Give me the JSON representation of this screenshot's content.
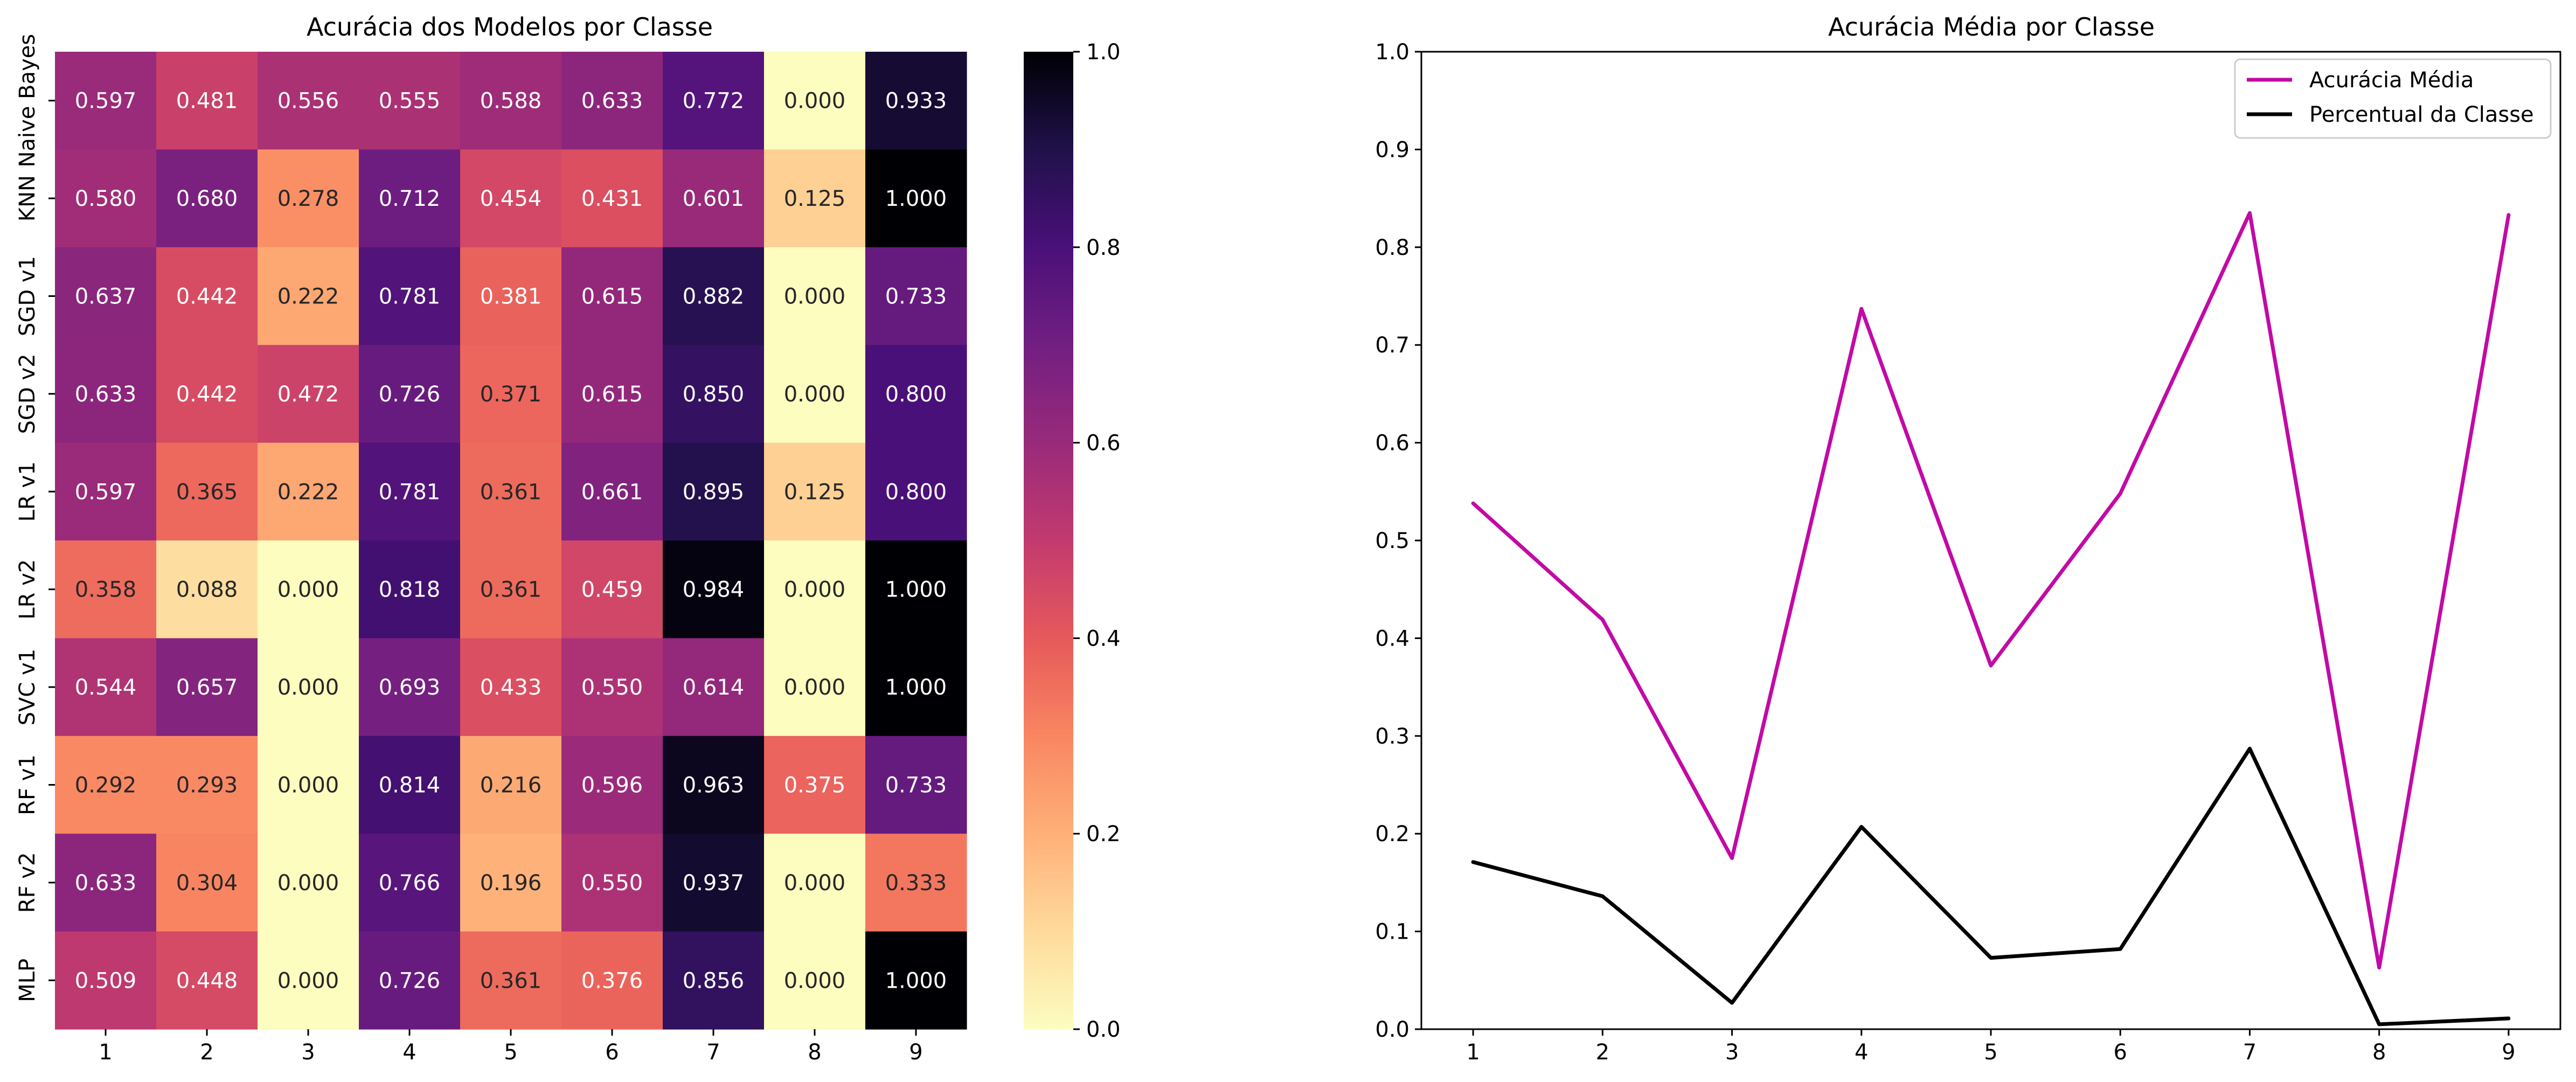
{
  "chart_data": [
    {
      "type": "heatmap",
      "title": "Acurácia dos Modelos por Classe",
      "rows": [
        "Naive Bayes",
        "KNN",
        "SGD v1",
        "SGD v2",
        "LR v1",
        "LR v2",
        "SVC v1",
        "RF v1",
        "RF v2",
        "MLP"
      ],
      "cols": [
        "1",
        "2",
        "3",
        "4",
        "5",
        "6",
        "7",
        "8",
        "9"
      ],
      "values": [
        [
          0.597,
          0.481,
          0.556,
          0.555,
          0.588,
          0.633,
          0.772,
          0.0,
          0.933
        ],
        [
          0.58,
          0.68,
          0.278,
          0.712,
          0.454,
          0.431,
          0.601,
          0.125,
          1.0
        ],
        [
          0.637,
          0.442,
          0.222,
          0.781,
          0.381,
          0.615,
          0.882,
          0.0,
          0.733
        ],
        [
          0.633,
          0.442,
          0.472,
          0.726,
          0.371,
          0.615,
          0.85,
          0.0,
          0.8
        ],
        [
          0.597,
          0.365,
          0.222,
          0.781,
          0.361,
          0.661,
          0.895,
          0.125,
          0.8
        ],
        [
          0.358,
          0.088,
          0.0,
          0.818,
          0.361,
          0.459,
          0.984,
          0.0,
          1.0
        ],
        [
          0.544,
          0.657,
          0.0,
          0.693,
          0.433,
          0.55,
          0.614,
          0.0,
          1.0
        ],
        [
          0.292,
          0.293,
          0.0,
          0.814,
          0.216,
          0.596,
          0.963,
          0.375,
          0.733
        ],
        [
          0.633,
          0.304,
          0.0,
          0.766,
          0.196,
          0.55,
          0.937,
          0.0,
          0.333
        ],
        [
          0.509,
          0.448,
          0.0,
          0.726,
          0.361,
          0.376,
          0.856,
          0.0,
          1.0
        ]
      ],
      "colormap": "magma_r",
      "vmin": 0,
      "vmax": 1,
      "colorbar_ticks": [
        "0.0",
        "0.2",
        "0.4",
        "0.6",
        "0.8",
        "1.0"
      ],
      "value_format": "3 decimals"
    },
    {
      "type": "line",
      "title": "Acurácia Média por Classe",
      "x": [
        1,
        2,
        3,
        4,
        5,
        6,
        7,
        8,
        9
      ],
      "series": [
        {
          "name": "Acurácia Média",
          "color": "#c20aa5",
          "values": [
            0.538,
            0.419,
            0.175,
            0.737,
            0.372,
            0.548,
            0.835,
            0.063,
            0.833
          ]
        },
        {
          "name": "Percentual da Classe",
          "color": "#000000",
          "values": [
            0.171,
            0.136,
            0.027,
            0.207,
            0.073,
            0.082,
            0.287,
            0.005,
            0.011
          ]
        }
      ],
      "xlim": [
        0.6,
        9.4
      ],
      "ylim": [
        0,
        1
      ],
      "xticks": [
        "1",
        "2",
        "3",
        "4",
        "5",
        "6",
        "7",
        "8",
        "9"
      ],
      "yticks": [
        "0.0",
        "0.1",
        "0.2",
        "0.3",
        "0.4",
        "0.5",
        "0.6",
        "0.7",
        "0.8",
        "0.9",
        "1.0"
      ],
      "legend": "top-right",
      "grid": false
    }
  ]
}
